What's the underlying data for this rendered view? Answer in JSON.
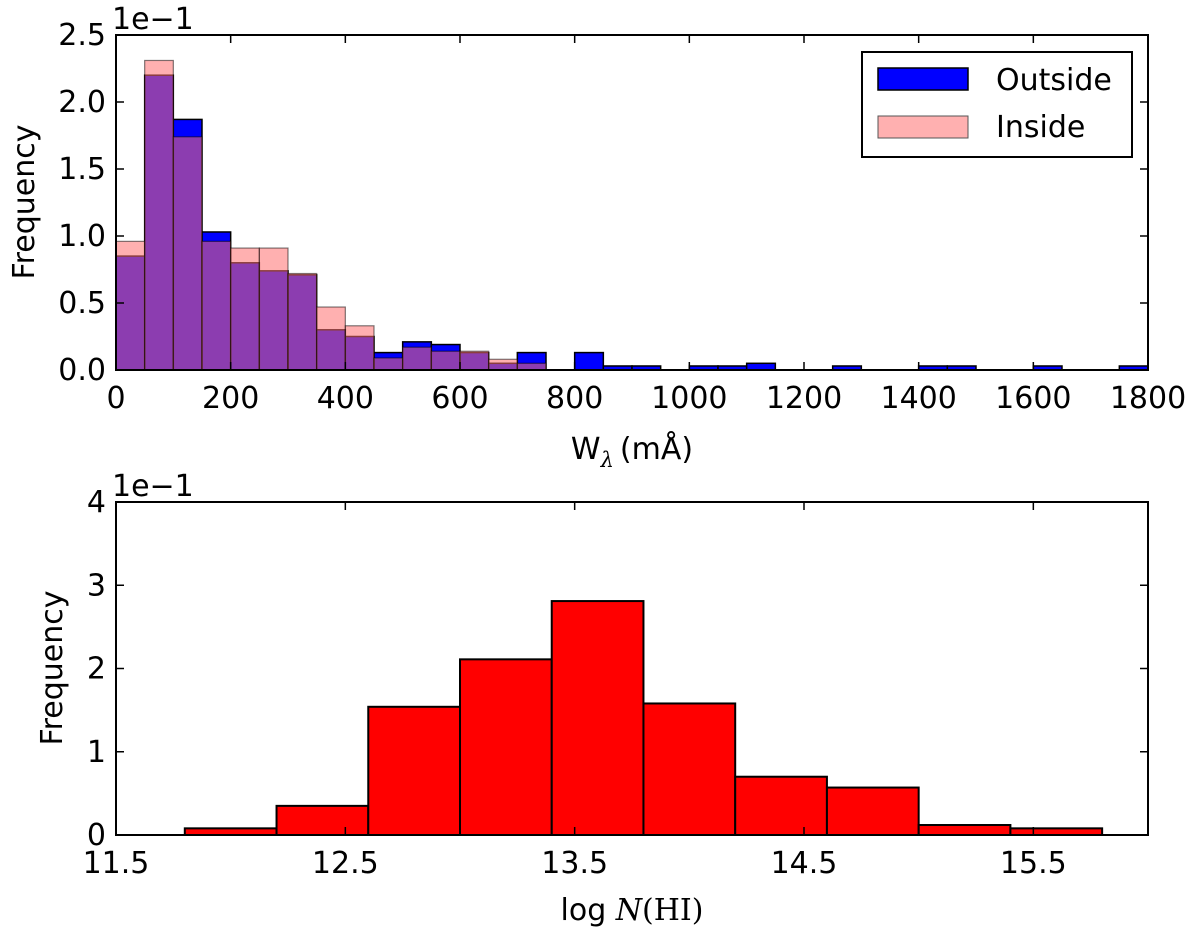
{
  "chart_data": [
    {
      "type": "bar",
      "subtype": "histogram-overlay",
      "title": "",
      "ylabel": "Frequency",
      "xlabel": "W",
      "xlabel_sub": "λ",
      "xlabel_unit": "(mÅ)",
      "offset_label": "1e−1",
      "xlim": [
        0,
        1800
      ],
      "ylim": [
        0,
        2.5
      ],
      "xticks": [
        "0",
        "200",
        "400",
        "600",
        "800",
        "1000",
        "1200",
        "1400",
        "1600",
        "1800"
      ],
      "yticks": [
        "0.0",
        "0.5",
        "1.0",
        "1.5",
        "2.0",
        "2.5"
      ],
      "bin_width": 50,
      "bin_edges_start": [
        0,
        50,
        100,
        150,
        200,
        250,
        300,
        350,
        400,
        450,
        500,
        550,
        600,
        650,
        700,
        750,
        800,
        850,
        900,
        950,
        1000,
        1050,
        1100,
        1150,
        1200,
        1250,
        1300,
        1350,
        1400,
        1450,
        1500,
        1550,
        1600,
        1650,
        1700,
        1750
      ],
      "legend_position": "top-right",
      "series": [
        {
          "name": "Outside",
          "color": "#0000ff",
          "values": [
            0.85,
            2.2,
            1.87,
            1.03,
            0.8,
            0.74,
            0.71,
            0.3,
            0.25,
            0.13,
            0.21,
            0.19,
            0.13,
            0.05,
            0.13,
            0.0,
            0.13,
            0.03,
            0.03,
            0.0,
            0.03,
            0.03,
            0.05,
            0.0,
            0.0,
            0.03,
            0.0,
            0.0,
            0.03,
            0.03,
            0.0,
            0.0,
            0.03,
            0.0,
            0.0,
            0.03
          ]
        },
        {
          "name": "Inside",
          "color": "#ff7070",
          "values": [
            0.96,
            2.31,
            1.74,
            0.96,
            0.91,
            0.91,
            0.72,
            0.47,
            0.33,
            0.09,
            0.17,
            0.14,
            0.14,
            0.08,
            0.05,
            0.0,
            0.0,
            0.0,
            0.0,
            0.0,
            0.0,
            0.0,
            0.0,
            0.0,
            0.0,
            0.0,
            0.0,
            0.0,
            0.0,
            0.0,
            0.0,
            0.0,
            0.0,
            0.0,
            0.0,
            0.0
          ]
        }
      ]
    },
    {
      "type": "bar",
      "subtype": "histogram",
      "title": "",
      "ylabel": "Frequency",
      "xlabel_prefix": "log ",
      "xlabel_var": "N",
      "xlabel_suffix": "(HI)",
      "offset_label": "1e−1",
      "xlim": [
        11.5,
        16.0
      ],
      "ylim": [
        0,
        4
      ],
      "xticks": [
        "11.5",
        "12.5",
        "13.5",
        "14.5",
        "15.5"
      ],
      "xtick_values": [
        11.5,
        12.5,
        13.5,
        14.5,
        15.5
      ],
      "yticks": [
        "0",
        "1",
        "2",
        "3",
        "4"
      ],
      "bin_edges": [
        11.8,
        12.2,
        12.6,
        13.0,
        13.4,
        13.8,
        14.2,
        14.6,
        15.0,
        15.4,
        15.8
      ],
      "series": [
        {
          "name": "log N(HI)",
          "color": "#ff0000",
          "values": [
            0.08,
            0.35,
            1.54,
            2.11,
            2.81,
            1.58,
            0.7,
            0.57,
            0.12,
            0.08
          ]
        }
      ]
    }
  ]
}
